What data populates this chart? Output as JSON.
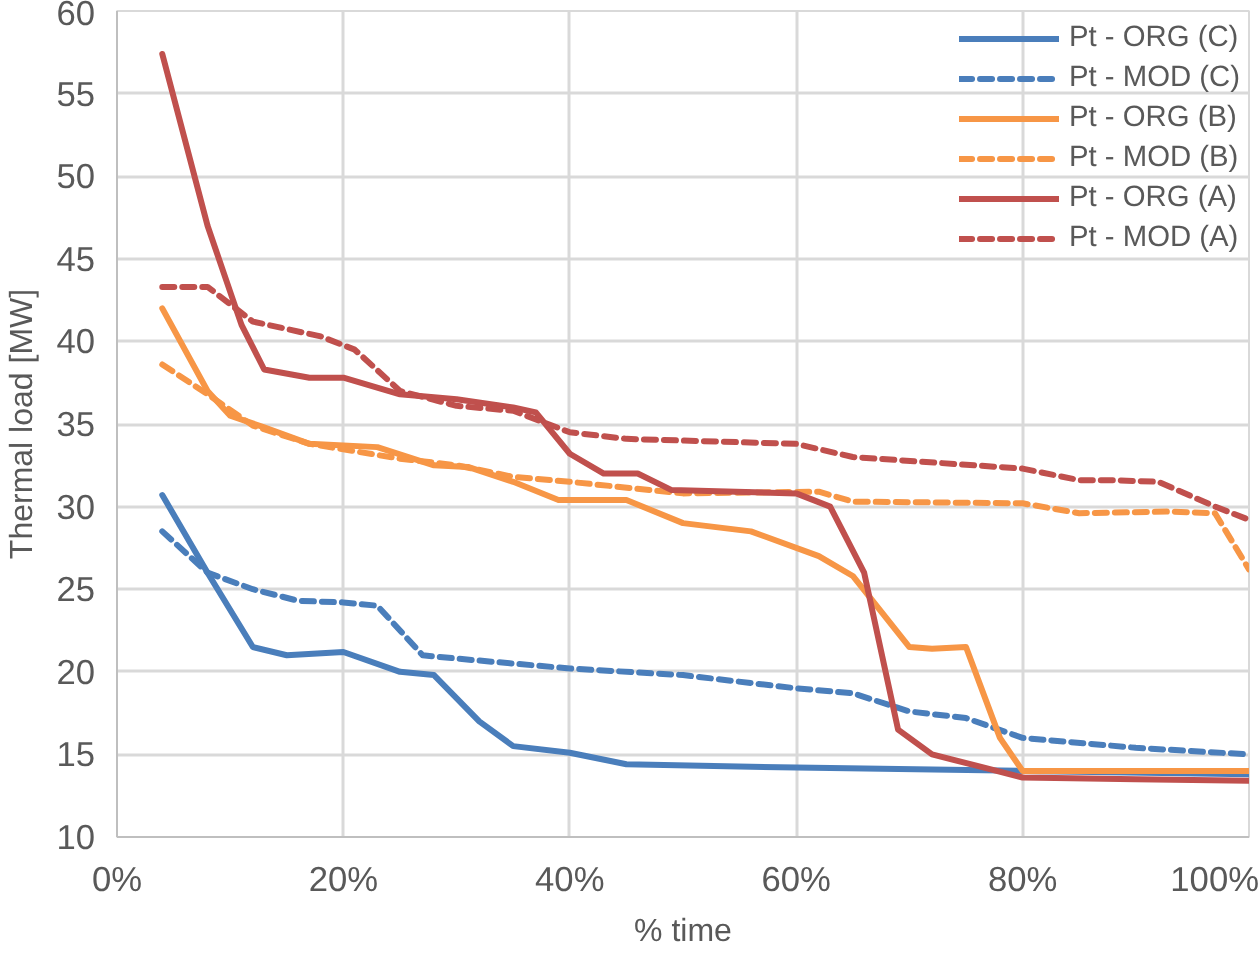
{
  "chart_data": {
    "type": "line",
    "xlabel": "% time",
    "ylabel": "Thermal load [MW]",
    "xlim": [
      0,
      100
    ],
    "ylim": [
      10,
      60
    ],
    "xticks": [
      {
        "value": 0,
        "label": "0%"
      },
      {
        "value": 20,
        "label": "20%"
      },
      {
        "value": 40,
        "label": "40%"
      },
      {
        "value": 60,
        "label": "60%"
      },
      {
        "value": 80,
        "label": "80%"
      },
      {
        "value": 100,
        "label": "100%"
      }
    ],
    "yticks": [
      10,
      15,
      20,
      25,
      30,
      35,
      40,
      45,
      50,
      55,
      60
    ],
    "grid": true,
    "legend": "top right",
    "marker": "none",
    "series": [
      {
        "name": "Pt - ORG (C)",
        "color": "#4a7ebb",
        "line_style": "solid",
        "x": [
          4,
          8,
          12,
          15,
          20,
          25,
          28,
          32,
          35,
          40,
          45,
          60,
          80,
          100
        ],
        "values": [
          30.7,
          26,
          21.5,
          21,
          21.2,
          20,
          19.8,
          17,
          15.5,
          15.1,
          14.4,
          14.2,
          14.0,
          13.8
        ]
      },
      {
        "name": "Pt - MOD (C)",
        "color": "#4a7ebb",
        "line_style": "dashed",
        "x": [
          4,
          8,
          12,
          16,
          20,
          23,
          27,
          30,
          40,
          50,
          60,
          65,
          70,
          75,
          80,
          90,
          100
        ],
        "values": [
          28.5,
          26,
          25,
          24.3,
          24.2,
          24,
          21,
          20.8,
          20.2,
          19.8,
          19,
          18.7,
          17.6,
          17.2,
          16,
          15.4,
          15.0
        ]
      },
      {
        "name": "Pt - ORG (B)",
        "color": "#f79646",
        "line_style": "solid",
        "x": [
          4,
          8,
          10,
          13,
          17,
          23,
          28,
          31,
          35,
          39,
          45,
          50,
          56,
          62,
          65,
          70,
          72,
          75,
          78,
          80,
          85,
          100
        ],
        "values": [
          42,
          37,
          35.5,
          34.8,
          33.8,
          33.6,
          32.5,
          32.4,
          31.5,
          30.4,
          30.4,
          29,
          28.5,
          27,
          25.8,
          21.5,
          21.4,
          21.5,
          16,
          14.0,
          14,
          14.0
        ]
      },
      {
        "name": "Pt - MOD (B)",
        "color": "#f79646",
        "line_style": "dashed",
        "x": [
          4,
          8,
          12,
          17,
          25,
          30,
          35,
          40,
          50,
          62,
          65,
          80,
          85,
          93,
          97,
          100
        ],
        "values": [
          38.6,
          36.8,
          34.9,
          33.8,
          32.9,
          32.5,
          31.8,
          31.5,
          30.8,
          30.9,
          30.3,
          30.2,
          29.6,
          29.7,
          29.6,
          26.2
        ]
      },
      {
        "name": "Pt - ORG (A)",
        "color": "#c0504d",
        "line_style": "solid",
        "x": [
          4,
          8,
          11,
          13,
          17,
          20,
          25,
          30,
          35,
          37,
          40,
          43,
          46,
          49,
          60,
          63,
          66,
          69,
          72,
          76,
          80,
          90,
          100
        ],
        "values": [
          57.4,
          47,
          41,
          38.3,
          37.8,
          37.8,
          36.8,
          36.5,
          36,
          35.7,
          33.2,
          32,
          32,
          31,
          30.8,
          30,
          26,
          16.5,
          15,
          14.3,
          13.6,
          13.5,
          13.4
        ]
      },
      {
        "name": "Pt - MOD (A)",
        "color": "#c0504d",
        "line_style": "dashed",
        "x": [
          4,
          8,
          12,
          18,
          21,
          25,
          30,
          35,
          40,
          45,
          60,
          65,
          80,
          85,
          88,
          92,
          97,
          100
        ],
        "values": [
          43.3,
          43.3,
          41.2,
          40.3,
          39.5,
          37,
          36.1,
          35.8,
          34.5,
          34.1,
          33.8,
          33,
          32.3,
          31.6,
          31.6,
          31.5,
          30,
          29.2
        ]
      }
    ]
  }
}
